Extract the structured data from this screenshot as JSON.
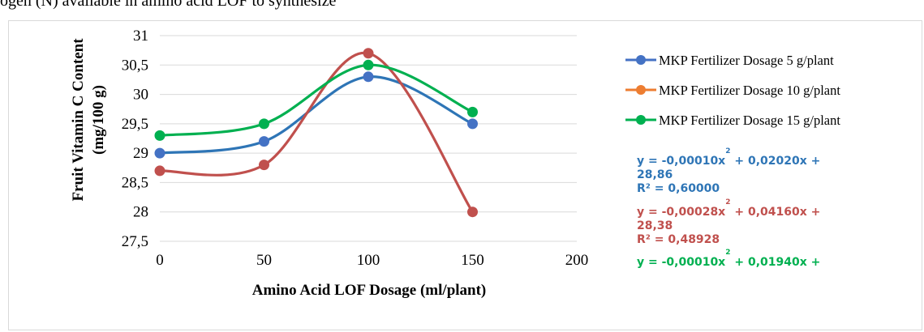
{
  "page": {
    "caption_fragment": "ogen (N) available in amino acid LOF to synthesize"
  },
  "chart_data": {
    "type": "line",
    "title": "",
    "xlabel": "Amino Acid LOF Dosage (ml/plant)",
    "ylabel_line1": "Fruit Vitamin C Content",
    "ylabel_line2": "(mg/100 g)",
    "xlim": [
      0,
      200
    ],
    "ylim": [
      27.5,
      31
    ],
    "x_ticks": [
      0,
      50,
      100,
      150,
      200
    ],
    "y_ticks": [
      27.5,
      28,
      28.5,
      29,
      29.5,
      30,
      30.5,
      31
    ],
    "x_tick_labels": [
      "0",
      "50",
      "100",
      "150",
      "200"
    ],
    "y_tick_labels": [
      "27,5",
      "28",
      "28,5",
      "29",
      "29,5",
      "30",
      "30,5",
      "31"
    ],
    "grid": "horizontal",
    "legend_position": "right",
    "x": [
      0,
      50,
      100,
      150
    ],
    "series": [
      {
        "name": "MKP Fertilizer Dosage 5 g/plant",
        "line_color": "#2e75b6",
        "marker_color": "#4472c4",
        "values": [
          29.0,
          29.2,
          30.3,
          29.5
        ]
      },
      {
        "name": "MKP Fertilizer Dosage 10 g/plant",
        "line_color": "#c0504d",
        "marker_color": "#c0504d",
        "legend_color": "#ed7d31",
        "values": [
          28.7,
          28.8,
          30.7,
          28.0
        ]
      },
      {
        "name": "MKP Fertilizer Dosage 15 g/plant",
        "line_color": "#00b050",
        "marker_color": "#00b050",
        "values": [
          29.3,
          29.5,
          30.5,
          29.7
        ]
      }
    ],
    "annotations": [
      {
        "color": "#2e75b6",
        "line1a": "y = -0,00010x",
        "sup": "2",
        "line1b": " + 0,02020x +",
        "line2": "28,86",
        "line3": "R² = 0,60000"
      },
      {
        "color": "#c0504d",
        "line1a": "y = -0,00028x",
        "sup": "2",
        "line1b": " + 0,04160x +",
        "line2": "28,38",
        "line3": "R² = 0,48928"
      },
      {
        "color": "#00b050",
        "line1a": "y = -0,00010x",
        "sup": "2",
        "line1b": " + 0,01940x +",
        "line2": "",
        "line3": ""
      }
    ]
  }
}
